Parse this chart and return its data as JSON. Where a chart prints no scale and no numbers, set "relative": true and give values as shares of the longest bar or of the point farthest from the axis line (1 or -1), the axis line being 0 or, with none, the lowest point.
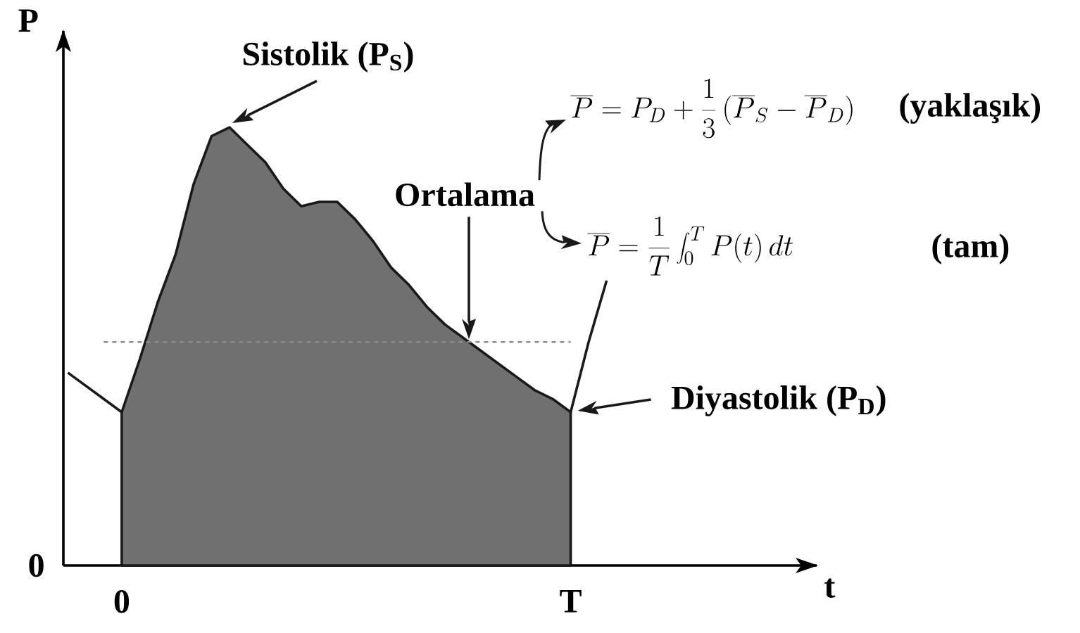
{
  "chart_data": {
    "type": "area",
    "relative": true,
    "ylabel": "P",
    "categories": [
      null,
      null,
      null,
      "0",
      null,
      null,
      null,
      null,
      null,
      null,
      null,
      null,
      null,
      null,
      null,
      null,
      null,
      null,
      null,
      null,
      null,
      null,
      null,
      null,
      null,
      null,
      null,
      null,
      "T",
      null,
      null
    ],
    "series": [
      {
        "type": "line",
        "color": "#1a1a1a",
        "values": [
          0.44,
          0.41,
          0.38,
          0.35,
          null,
          null,
          null,
          null,
          null,
          null,
          null,
          null,
          null,
          null,
          null,
          null,
          null,
          null,
          null,
          null,
          null,
          null,
          null,
          null,
          null,
          null,
          null,
          null,
          null,
          null,
          null
        ]
      },
      {
        "color": "#707070",
        "values": [
          null,
          null,
          null,
          0.35,
          0.47,
          0.6,
          0.71,
          0.87,
          0.98,
          1,
          0.96,
          0.92,
          0.86,
          0.82,
          0.83,
          0.83,
          0.79,
          0.74,
          0.68,
          0.64,
          0.59,
          0.55,
          0.52,
          0.49,
          0.46,
          0.43,
          0.4,
          0.38,
          0.35,
          null,
          null
        ]
      },
      {
        "type": "line",
        "color": "#1a1a1a",
        "values": [
          null,
          null,
          null,
          null,
          null,
          null,
          null,
          null,
          null,
          null,
          null,
          null,
          null,
          null,
          null,
          null,
          null,
          null,
          null,
          null,
          null,
          null,
          null,
          null,
          null,
          null,
          null,
          null,
          0.35,
          0.51,
          0.65
        ]
      }
    ],
    "ref_lines": [
      {
        "axis": "y",
        "value": 0.51,
        "color": "#8c8c8c",
        "line_style": "dashed"
      }
    ],
    "annotations": [
      "Sistolik (P$_{S}$)",
      "Ortalama",
      "Diyastolik (P$_{D}$)",
      "\\overline{P} = P_{D} + \\frac{1}{3}\\,(\\overline{P}_{S} - \\overline{P}_{D})",
      "(yaklaşık)",
      "\\overline{P} = \\frac{1}{T}\\int_{0}^{T} P(t)\\,dt",
      "(tam)",
      "0",
      "t"
    ]
  }
}
